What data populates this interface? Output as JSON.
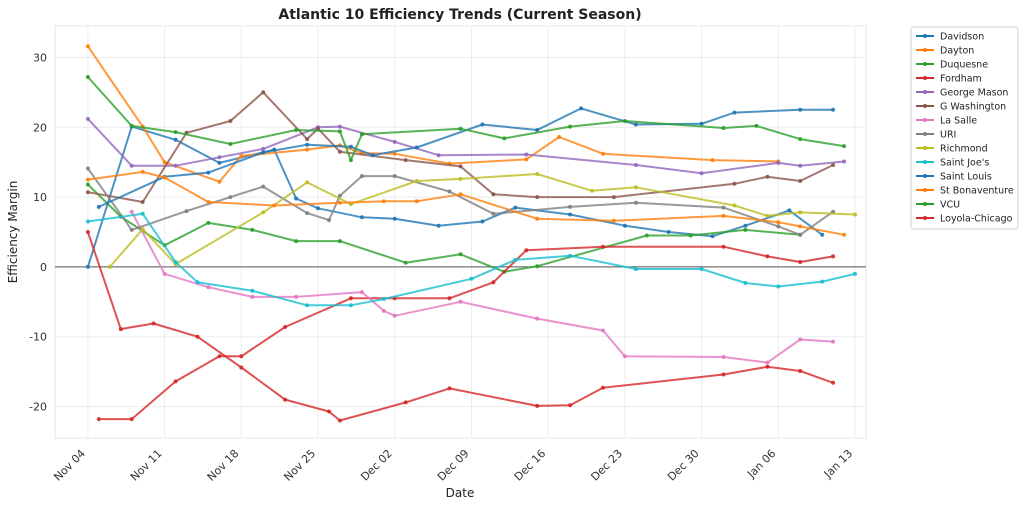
{
  "chart_data": {
    "type": "line",
    "title": "Atlantic 10 Efficiency Trends (Current Season)",
    "xlabel": "Date",
    "ylabel": "Efficiency Margin",
    "x_axis": {
      "type": "date",
      "min": "2024-11-01",
      "max": "2025-01-14",
      "ticks": [
        {
          "date": "2024-11-04",
          "label": "Nov 04"
        },
        {
          "date": "2024-11-11",
          "label": "Nov 11"
        },
        {
          "date": "2024-11-18",
          "label": "Nov 18"
        },
        {
          "date": "2024-11-25",
          "label": "Nov 25"
        },
        {
          "date": "2024-12-02",
          "label": "Dec 02"
        },
        {
          "date": "2024-12-09",
          "label": "Dec 09"
        },
        {
          "date": "2024-12-16",
          "label": "Dec 16"
        },
        {
          "date": "2024-12-23",
          "label": "Dec 23"
        },
        {
          "date": "2024-12-30",
          "label": "Dec 30"
        },
        {
          "date": "2025-01-06",
          "label": "Jan 06"
        },
        {
          "date": "2025-01-13",
          "label": "Jan 13"
        }
      ]
    },
    "y_axis": {
      "min": -24.5,
      "max": 34.5,
      "ticks": [
        -20,
        -10,
        0,
        10,
        20,
        30
      ]
    },
    "grid": true,
    "zero_line": true,
    "legend_position": "outside-right",
    "series": [
      {
        "name": "Davidson",
        "color": "#1f77b4",
        "points": [
          [
            "2024-11-04",
            0.0
          ],
          [
            "2024-11-08",
            20.1
          ],
          [
            "2024-11-12",
            18.2
          ],
          [
            "2024-11-16",
            14.9
          ],
          [
            "2024-11-21",
            16.8
          ],
          [
            "2024-11-23",
            9.8
          ],
          [
            "2024-11-25",
            8.4
          ],
          [
            "2024-11-29",
            7.1
          ],
          [
            "2024-12-02",
            6.9
          ],
          [
            "2024-12-06",
            5.9
          ],
          [
            "2024-12-10",
            6.5
          ],
          [
            "2024-12-13",
            8.5
          ],
          [
            "2024-12-18",
            7.5
          ],
          [
            "2024-12-23",
            5.9
          ],
          [
            "2024-12-27",
            5.0
          ],
          [
            "2024-12-31",
            4.4
          ],
          [
            "2025-01-03",
            5.9
          ],
          [
            "2025-01-07",
            8.1
          ],
          [
            "2025-01-10",
            4.6
          ]
        ]
      },
      {
        "name": "Dayton",
        "color": "#ff7f0e",
        "points": [
          [
            "2024-11-04",
            31.6
          ],
          [
            "2024-11-09",
            20.1
          ],
          [
            "2024-11-11",
            15.0
          ],
          [
            "2024-11-16",
            12.2
          ],
          [
            "2024-11-18",
            15.9
          ],
          [
            "2024-11-24",
            16.8
          ],
          [
            "2024-11-27",
            17.4
          ],
          [
            "2024-11-29",
            16.3
          ],
          [
            "2024-12-02",
            16.2
          ],
          [
            "2024-12-07",
            14.8
          ],
          [
            "2024-12-14",
            15.4
          ],
          [
            "2024-12-17",
            18.6
          ],
          [
            "2024-12-21",
            16.2
          ],
          [
            "2024-12-31",
            15.3
          ],
          [
            "2025-01-06",
            15.1
          ]
        ]
      },
      {
        "name": "Duquesne",
        "color": "#2ca02c",
        "points": [
          [
            "2024-11-04",
            11.8
          ],
          [
            "2024-11-07",
            7.2
          ],
          [
            "2024-11-11",
            3.1
          ],
          [
            "2024-11-15",
            6.3
          ],
          [
            "2024-11-19",
            5.3
          ],
          [
            "2024-11-23",
            3.7
          ],
          [
            "2024-11-27",
            3.7
          ],
          [
            "2024-12-03",
            0.6
          ],
          [
            "2024-12-08",
            1.8
          ],
          [
            "2024-12-12",
            -0.7
          ],
          [
            "2024-12-15",
            0.1
          ],
          [
            "2024-12-25",
            4.5
          ],
          [
            "2024-12-29",
            4.5
          ],
          [
            "2025-01-03",
            5.3
          ],
          [
            "2025-01-08",
            4.6
          ]
        ]
      },
      {
        "name": "Fordham",
        "color": "#d62728",
        "points": [
          [
            "2024-11-05",
            -21.8
          ],
          [
            "2024-11-08",
            -21.8
          ],
          [
            "2024-11-12",
            -16.4
          ],
          [
            "2024-11-16",
            -12.8
          ],
          [
            "2024-11-18",
            -12.8
          ],
          [
            "2024-11-22",
            -8.6
          ],
          [
            "2024-11-28",
            -4.5
          ],
          [
            "2024-12-02",
            -4.5
          ],
          [
            "2024-12-07",
            -4.5
          ],
          [
            "2024-12-11",
            -2.2
          ],
          [
            "2024-12-14",
            2.4
          ],
          [
            "2024-12-21",
            2.9
          ],
          [
            "2025-01-01",
            2.9
          ],
          [
            "2025-01-05",
            1.5
          ],
          [
            "2025-01-08",
            0.7
          ],
          [
            "2025-01-11",
            1.5
          ]
        ]
      },
      {
        "name": "George Mason",
        "color": "#9467bd",
        "points": [
          [
            "2024-11-04",
            21.2
          ],
          [
            "2024-11-08",
            14.5
          ],
          [
            "2024-11-12",
            14.5
          ],
          [
            "2024-11-16",
            15.7
          ],
          [
            "2024-11-20",
            16.9
          ],
          [
            "2024-11-25",
            20.0
          ],
          [
            "2024-11-27",
            20.1
          ],
          [
            "2024-12-02",
            17.9
          ],
          [
            "2024-12-06",
            16.0
          ],
          [
            "2024-12-14",
            16.1
          ],
          [
            "2024-12-24",
            14.6
          ],
          [
            "2024-12-30",
            13.4
          ],
          [
            "2025-01-06",
            14.9
          ],
          [
            "2025-01-08",
            14.5
          ],
          [
            "2025-01-12",
            15.1
          ]
        ]
      },
      {
        "name": "G Washington",
        "color": "#8c564b",
        "points": [
          [
            "2024-11-04",
            10.7
          ],
          [
            "2024-11-09",
            9.3
          ],
          [
            "2024-11-13",
            19.2
          ],
          [
            "2024-11-17",
            20.9
          ],
          [
            "2024-11-20",
            25.0
          ],
          [
            "2024-11-24",
            18.3
          ],
          [
            "2024-11-25",
            19.8
          ],
          [
            "2024-11-27",
            16.5
          ],
          [
            "2024-12-03",
            15.3
          ],
          [
            "2024-12-08",
            14.4
          ],
          [
            "2024-12-11",
            10.4
          ],
          [
            "2024-12-15",
            10.0
          ],
          [
            "2024-12-22",
            10.0
          ],
          [
            "2025-01-02",
            11.9
          ],
          [
            "2025-01-05",
            12.9
          ],
          [
            "2025-01-08",
            12.3
          ],
          [
            "2025-01-11",
            14.6
          ]
        ]
      },
      {
        "name": "La Salle",
        "color": "#e377c2",
        "points": [
          [
            "2024-11-08",
            7.9
          ],
          [
            "2024-11-11",
            -1.0
          ],
          [
            "2024-11-15",
            -2.9
          ],
          [
            "2024-11-19",
            -4.3
          ],
          [
            "2024-11-23",
            -4.3
          ],
          [
            "2024-11-29",
            -3.6
          ],
          [
            "2024-12-01",
            -6.3
          ],
          [
            "2024-12-02",
            -7.0
          ],
          [
            "2024-12-08",
            -5.0
          ],
          [
            "2024-12-15",
            -7.4
          ],
          [
            "2024-12-21",
            -9.1
          ],
          [
            "2024-12-23",
            -12.8
          ],
          [
            "2025-01-01",
            -12.9
          ],
          [
            "2025-01-05",
            -13.7
          ],
          [
            "2025-01-08",
            -10.4
          ],
          [
            "2025-01-11",
            -10.7
          ]
        ]
      },
      {
        "name": "URI",
        "color": "#7f7f7f",
        "points": [
          [
            "2024-11-04",
            14.1
          ],
          [
            "2024-11-08",
            5.3
          ],
          [
            "2024-11-13",
            8.0
          ],
          [
            "2024-11-17",
            10.0
          ],
          [
            "2024-11-20",
            11.5
          ],
          [
            "2024-11-24",
            7.7
          ],
          [
            "2024-11-26",
            6.7
          ],
          [
            "2024-11-27",
            10.2
          ],
          [
            "2024-11-29",
            13.0
          ],
          [
            "2024-12-02",
            13.0
          ],
          [
            "2024-12-07",
            10.8
          ],
          [
            "2024-12-11",
            7.6
          ],
          [
            "2024-12-18",
            8.6
          ],
          [
            "2024-12-24",
            9.2
          ],
          [
            "2025-01-01",
            8.5
          ],
          [
            "2025-01-06",
            5.8
          ],
          [
            "2025-01-08",
            4.6
          ],
          [
            "2025-01-11",
            7.9
          ]
        ]
      },
      {
        "name": "Richmond",
        "color": "#bcbd22",
        "points": [
          [
            "2024-11-06",
            0.0
          ],
          [
            "2024-11-09",
            5.4
          ],
          [
            "2024-11-12",
            0.4
          ],
          [
            "2024-11-20",
            7.8
          ],
          [
            "2024-11-24",
            12.1
          ],
          [
            "2024-11-28",
            9.0
          ],
          [
            "2024-12-04",
            12.3
          ],
          [
            "2024-12-08",
            12.6
          ],
          [
            "2024-12-15",
            13.3
          ],
          [
            "2024-12-20",
            10.9
          ],
          [
            "2024-12-24",
            11.4
          ],
          [
            "2025-01-02",
            8.8
          ],
          [
            "2025-01-05",
            7.3
          ],
          [
            "2025-01-08",
            7.8
          ],
          [
            "2025-01-13",
            7.5
          ]
        ]
      },
      {
        "name": "Saint Joe's",
        "color": "#17becf",
        "points": [
          [
            "2024-11-04",
            6.5
          ],
          [
            "2024-11-09",
            7.6
          ],
          [
            "2024-11-12",
            0.7
          ],
          [
            "2024-11-14",
            -2.2
          ],
          [
            "2024-11-19",
            -3.4
          ],
          [
            "2024-11-24",
            -5.5
          ],
          [
            "2024-11-28",
            -5.5
          ],
          [
            "2024-12-01",
            -4.6
          ],
          [
            "2024-12-09",
            -1.7
          ],
          [
            "2024-12-13",
            1.0
          ],
          [
            "2024-12-18",
            1.6
          ],
          [
            "2024-12-24",
            -0.3
          ],
          [
            "2024-12-30",
            -0.3
          ],
          [
            "2025-01-03",
            -2.3
          ],
          [
            "2025-01-06",
            -2.8
          ],
          [
            "2025-01-10",
            -2.1
          ],
          [
            "2025-01-13",
            -1.0
          ]
        ]
      },
      {
        "name": "Saint Louis",
        "color": "#1f77b4",
        "points": [
          [
            "2024-11-05",
            8.6
          ],
          [
            "2024-11-11",
            12.9
          ],
          [
            "2024-11-15",
            13.5
          ],
          [
            "2024-11-20",
            16.4
          ],
          [
            "2024-11-24",
            17.5
          ],
          [
            "2024-11-28",
            17.2
          ],
          [
            "2024-11-30",
            16.0
          ],
          [
            "2024-12-04",
            17.1
          ],
          [
            "2024-12-10",
            20.4
          ],
          [
            "2024-12-15",
            19.6
          ],
          [
            "2024-12-19",
            22.7
          ],
          [
            "2024-12-24",
            20.4
          ],
          [
            "2024-12-30",
            20.5
          ],
          [
            "2025-01-02",
            22.1
          ],
          [
            "2025-01-08",
            22.5
          ],
          [
            "2025-01-11",
            22.5
          ]
        ]
      },
      {
        "name": "St Bonaventure",
        "color": "#ff7f0e",
        "points": [
          [
            "2024-11-04",
            12.5
          ],
          [
            "2024-11-09",
            13.6
          ],
          [
            "2024-11-11",
            12.8
          ],
          [
            "2024-11-15",
            9.3
          ],
          [
            "2024-11-21",
            8.8
          ],
          [
            "2024-11-27",
            9.2
          ],
          [
            "2024-12-01",
            9.4
          ],
          [
            "2024-12-04",
            9.4
          ],
          [
            "2024-12-08",
            10.4
          ],
          [
            "2024-12-15",
            6.9
          ],
          [
            "2024-12-22",
            6.6
          ],
          [
            "2025-01-01",
            7.3
          ],
          [
            "2025-01-06",
            6.4
          ],
          [
            "2025-01-08",
            5.8
          ],
          [
            "2025-01-12",
            4.6
          ]
        ]
      },
      {
        "name": "VCU",
        "color": "#2ca02c",
        "points": [
          [
            "2024-11-04",
            27.2
          ],
          [
            "2024-11-08",
            20.2
          ],
          [
            "2024-11-12",
            19.3
          ],
          [
            "2024-11-17",
            17.6
          ],
          [
            "2024-11-23",
            19.6
          ],
          [
            "2024-11-27",
            19.4
          ],
          [
            "2024-11-28",
            15.3
          ],
          [
            "2024-11-29",
            19.0
          ],
          [
            "2024-12-08",
            19.8
          ],
          [
            "2024-12-12",
            18.4
          ],
          [
            "2024-12-18",
            20.1
          ],
          [
            "2024-12-23",
            20.9
          ],
          [
            "2025-01-01",
            19.9
          ],
          [
            "2025-01-04",
            20.2
          ],
          [
            "2025-01-08",
            18.3
          ],
          [
            "2025-01-12",
            17.3
          ]
        ]
      },
      {
        "name": "Loyola-Chicago",
        "color": "#d62728",
        "points": [
          [
            "2024-11-04",
            5.0
          ],
          [
            "2024-11-07",
            -8.9
          ],
          [
            "2024-11-10",
            -8.1
          ],
          [
            "2024-11-14",
            -10.0
          ],
          [
            "2024-11-18",
            -14.4
          ],
          [
            "2024-11-22",
            -19.0
          ],
          [
            "2024-11-26",
            -20.7
          ],
          [
            "2024-11-27",
            -22.0
          ],
          [
            "2024-12-03",
            -19.4
          ],
          [
            "2024-12-07",
            -17.4
          ],
          [
            "2024-12-15",
            -19.9
          ],
          [
            "2024-12-18",
            -19.8
          ],
          [
            "2024-12-21",
            -17.3
          ],
          [
            "2025-01-01",
            -15.4
          ],
          [
            "2025-01-05",
            -14.3
          ],
          [
            "2025-01-08",
            -14.9
          ],
          [
            "2025-01-11",
            -16.6
          ]
        ]
      }
    ]
  }
}
